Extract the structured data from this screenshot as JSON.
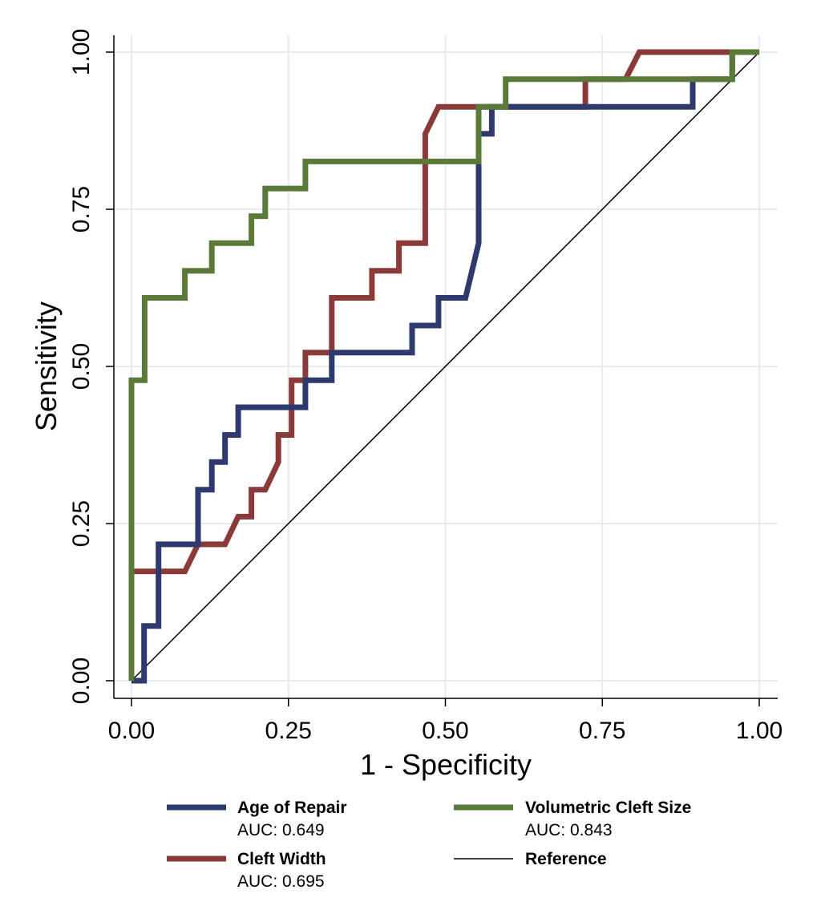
{
  "chart_data": {
    "type": "line",
    "title": "",
    "xlabel": "1 - Specificity",
    "ylabel": "Sensitivity",
    "xlim": [
      0,
      1
    ],
    "ylim": [
      0,
      1
    ],
    "x_ticks": [
      "0.00",
      "0.25",
      "0.50",
      "0.75",
      "1.00"
    ],
    "y_ticks": [
      "0.00",
      "0.25",
      "0.50",
      "0.75",
      "1.00"
    ],
    "grid": true,
    "legend_position": "bottom",
    "series": [
      {
        "name": "Age of Repair",
        "auc_label": "AUC: 0.649",
        "color": "#2e3a6e",
        "points": [
          [
            0.0,
            0.0
          ],
          [
            0.02,
            0.0
          ],
          [
            0.02,
            0.087
          ],
          [
            0.043,
            0.087
          ],
          [
            0.043,
            0.217
          ],
          [
            0.106,
            0.217
          ],
          [
            0.106,
            0.304
          ],
          [
            0.128,
            0.304
          ],
          [
            0.128,
            0.348
          ],
          [
            0.149,
            0.348
          ],
          [
            0.149,
            0.391
          ],
          [
            0.17,
            0.391
          ],
          [
            0.17,
            0.435
          ],
          [
            0.277,
            0.435
          ],
          [
            0.277,
            0.478
          ],
          [
            0.319,
            0.478
          ],
          [
            0.319,
            0.522
          ],
          [
            0.447,
            0.522
          ],
          [
            0.447,
            0.565
          ],
          [
            0.489,
            0.565
          ],
          [
            0.489,
            0.609
          ],
          [
            0.532,
            0.609
          ],
          [
            0.553,
            0.696
          ],
          [
            0.553,
            0.87
          ],
          [
            0.574,
            0.87
          ],
          [
            0.574,
            0.913
          ],
          [
            0.894,
            0.913
          ],
          [
            0.894,
            0.957
          ],
          [
            0.957,
            0.957
          ],
          [
            0.957,
            1.0
          ],
          [
            1.0,
            1.0
          ]
        ]
      },
      {
        "name": "Cleft Width",
        "auc_label": "AUC: 0.695",
        "color": "#8b3a3a",
        "points": [
          [
            0.0,
            0.0
          ],
          [
            0.0,
            0.174
          ],
          [
            0.085,
            0.174
          ],
          [
            0.106,
            0.217
          ],
          [
            0.149,
            0.217
          ],
          [
            0.17,
            0.261
          ],
          [
            0.191,
            0.261
          ],
          [
            0.191,
            0.304
          ],
          [
            0.213,
            0.304
          ],
          [
            0.234,
            0.348
          ],
          [
            0.234,
            0.391
          ],
          [
            0.255,
            0.391
          ],
          [
            0.255,
            0.478
          ],
          [
            0.277,
            0.478
          ],
          [
            0.277,
            0.522
          ],
          [
            0.319,
            0.522
          ],
          [
            0.319,
            0.609
          ],
          [
            0.383,
            0.609
          ],
          [
            0.383,
            0.652
          ],
          [
            0.426,
            0.652
          ],
          [
            0.426,
            0.696
          ],
          [
            0.468,
            0.696
          ],
          [
            0.468,
            0.87
          ],
          [
            0.489,
            0.913
          ],
          [
            0.723,
            0.913
          ],
          [
            0.723,
            0.957
          ],
          [
            0.787,
            0.957
          ],
          [
            0.809,
            1.0
          ],
          [
            1.0,
            1.0
          ]
        ]
      },
      {
        "name": "Volumetric Cleft Size",
        "auc_label": "AUC: 0.843",
        "color": "#5b7a3a",
        "points": [
          [
            0.0,
            0.0
          ],
          [
            0.0,
            0.478
          ],
          [
            0.021,
            0.478
          ],
          [
            0.021,
            0.609
          ],
          [
            0.085,
            0.609
          ],
          [
            0.085,
            0.652
          ],
          [
            0.128,
            0.652
          ],
          [
            0.128,
            0.696
          ],
          [
            0.191,
            0.696
          ],
          [
            0.191,
            0.739
          ],
          [
            0.213,
            0.739
          ],
          [
            0.213,
            0.783
          ],
          [
            0.277,
            0.783
          ],
          [
            0.277,
            0.826
          ],
          [
            0.553,
            0.826
          ],
          [
            0.553,
            0.913
          ],
          [
            0.596,
            0.913
          ],
          [
            0.596,
            0.957
          ],
          [
            0.957,
            0.957
          ],
          [
            0.957,
            1.0
          ],
          [
            1.0,
            1.0
          ]
        ]
      },
      {
        "name": "Reference",
        "auc_label": "",
        "color": "#000000",
        "points": [
          [
            0.0,
            0.0
          ],
          [
            1.0,
            1.0
          ]
        ]
      }
    ]
  }
}
